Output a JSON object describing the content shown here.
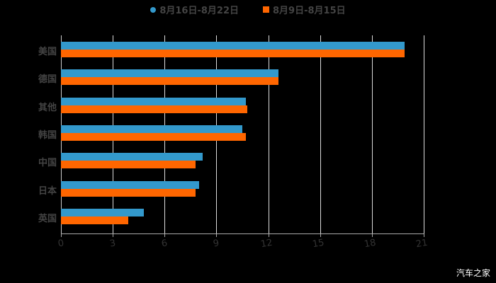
{
  "chart_data": {
    "type": "bar",
    "orientation": "horizontal",
    "title": "",
    "categories": [
      "美国",
      "德国",
      "其他",
      "韩国",
      "中国",
      "日本",
      "英国"
    ],
    "series": [
      {
        "name": "8月16日-8月22日",
        "color": "#3399cc",
        "values": [
          19.9,
          12.6,
          10.7,
          10.5,
          8.2,
          8.0,
          4.8
        ]
      },
      {
        "name": "8月9日-8月15日",
        "color": "#ff6600",
        "values": [
          19.9,
          12.6,
          10.8,
          10.7,
          7.8,
          7.8,
          3.9
        ]
      }
    ],
    "xlabel": "",
    "ylabel": "",
    "xlim": [
      0,
      21
    ],
    "xticks": [
      "0",
      "3",
      "6",
      "9",
      "12",
      "15",
      "18",
      "21"
    ],
    "grid": true,
    "legend_position": "top"
  },
  "legend": [
    {
      "label": "8月16日-8月22日",
      "color": "#3399cc"
    },
    {
      "label": "8月9日-8月15日",
      "color": "#ff6600"
    }
  ],
  "watermark": "汽车之家"
}
